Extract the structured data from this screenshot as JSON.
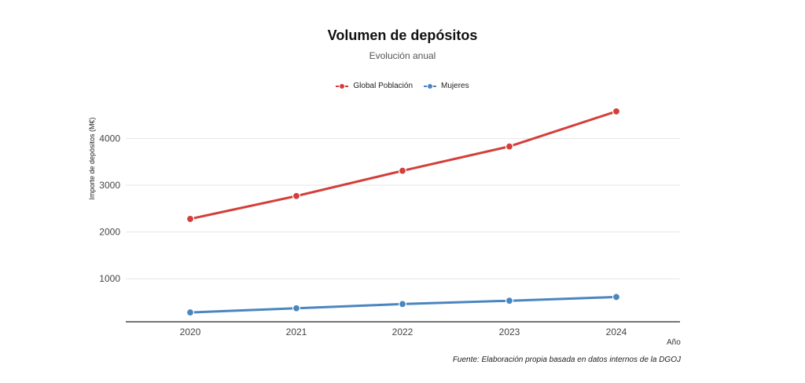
{
  "chart_data": {
    "type": "line",
    "title": "Volumen de depósitos",
    "subtitle": "Evolución anual",
    "xlabel": "Año",
    "ylabel": "Importe de depósitos (M€)",
    "categories": [
      "2020",
      "2021",
      "2022",
      "2023",
      "2024"
    ],
    "y_ticks": [
      1000,
      2000,
      3000,
      4000
    ],
    "y_tick_labels": [
      "1000",
      "2000",
      "3000",
      "4000"
    ],
    "ylim": [
      80,
      4780
    ],
    "grid": true,
    "legend_position": "top-center",
    "series": [
      {
        "name": "Global Población",
        "color": "#d33f3a",
        "values": [
          2280,
          2770,
          3310,
          3830,
          4580
        ]
      },
      {
        "name": "Mujeres",
        "color": "#4a86c0",
        "values": [
          280,
          370,
          460,
          530,
          610
        ]
      }
    ],
    "source": "Fuente: Elaboración propia basada en datos internos de la DGOJ"
  }
}
